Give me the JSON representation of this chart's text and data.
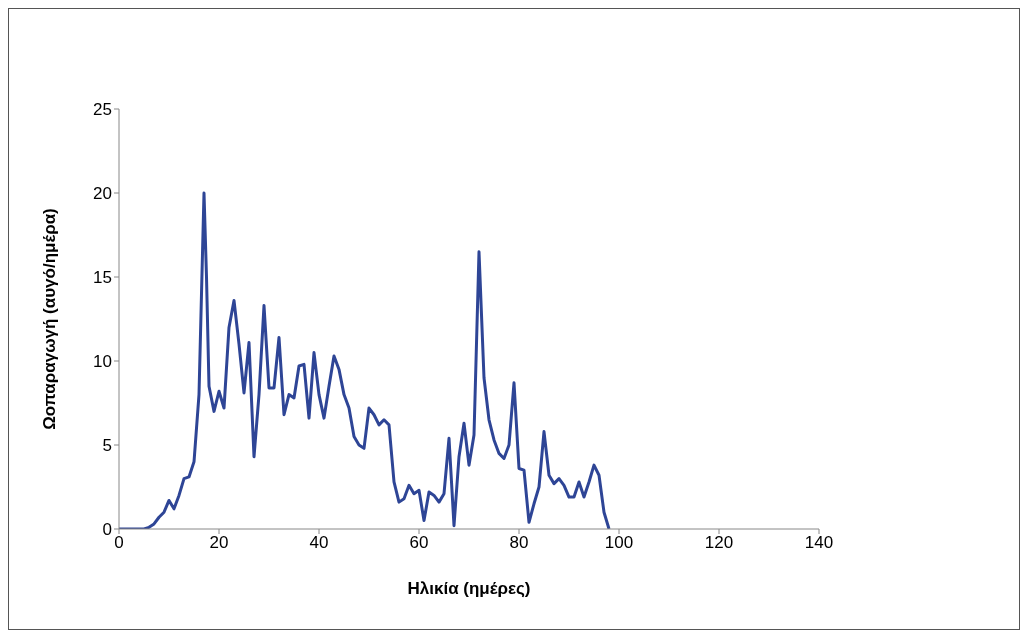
{
  "chart_data": {
    "type": "line",
    "xlabel": "Ηλικία (ημέρες)",
    "ylabel": "Ωοπαραγωγή (αυγό/ημέρα)",
    "x": [
      0,
      5,
      6,
      7,
      8,
      9,
      10,
      11,
      12,
      13,
      14,
      15,
      16,
      17,
      17.5,
      18,
      19,
      20,
      21,
      22,
      23,
      24,
      25,
      26,
      27,
      28,
      29,
      30,
      31,
      32,
      33,
      34,
      35,
      36,
      37,
      38,
      39,
      40,
      41,
      42,
      43,
      44,
      45,
      46,
      47,
      48,
      49,
      50,
      51,
      52,
      53,
      54,
      55,
      56,
      57,
      58,
      59,
      60,
      61,
      62,
      63,
      64,
      65,
      66,
      67,
      68,
      69,
      70,
      71,
      72,
      73,
      74,
      75,
      76,
      77,
      78,
      79,
      80,
      81,
      82,
      83,
      84,
      85,
      86,
      87,
      88,
      89,
      90,
      91,
      92,
      93,
      94,
      95,
      96,
      97,
      98
    ],
    "series": [
      {
        "color": "#2e4596",
        "values": [
          0,
          0,
          0.1,
          0.3,
          0.7,
          1,
          1.7,
          1.2,
          2,
          3,
          3.1,
          4,
          8,
          20,
          15,
          8.5,
          7,
          8.2,
          7.2,
          12,
          13.6,
          11,
          8.1,
          11.1,
          4.3,
          8,
          13.3,
          8.4,
          8.4,
          11.4,
          6.8,
          8,
          7.8,
          9.7,
          9.8,
          6.6,
          10.5,
          8,
          6.6,
          8.5,
          10.3,
          9.5,
          8,
          7.2,
          5.5,
          5,
          4.8,
          7.2,
          6.8,
          6.2,
          6.5,
          6.2,
          2.8,
          1.6,
          1.8,
          2.6,
          2.1,
          2.3,
          0.5,
          2.2,
          2,
          1.6,
          2.1,
          5.4,
          0.2,
          4.3,
          6.3,
          3.8,
          5.6,
          16.5,
          9,
          6.5,
          5.3,
          4.5,
          4.2,
          5,
          8.7,
          3.6,
          3.5,
          0.4,
          1.5,
          2.5,
          5.8,
          3.2,
          2.7,
          3,
          2.6,
          1.9,
          1.9,
          2.8,
          1.9,
          2.8,
          3.8,
          3.2,
          1,
          0
        ]
      }
    ],
    "xlim": [
      0,
      140
    ],
    "xticks": [
      0,
      20,
      40,
      60,
      80,
      100,
      120,
      140
    ],
    "ylim": [
      0,
      25
    ],
    "yticks": [
      0,
      5,
      10,
      15,
      20,
      25
    ],
    "grid": false,
    "legend": false,
    "marker": "none",
    "line_style": "solid"
  }
}
